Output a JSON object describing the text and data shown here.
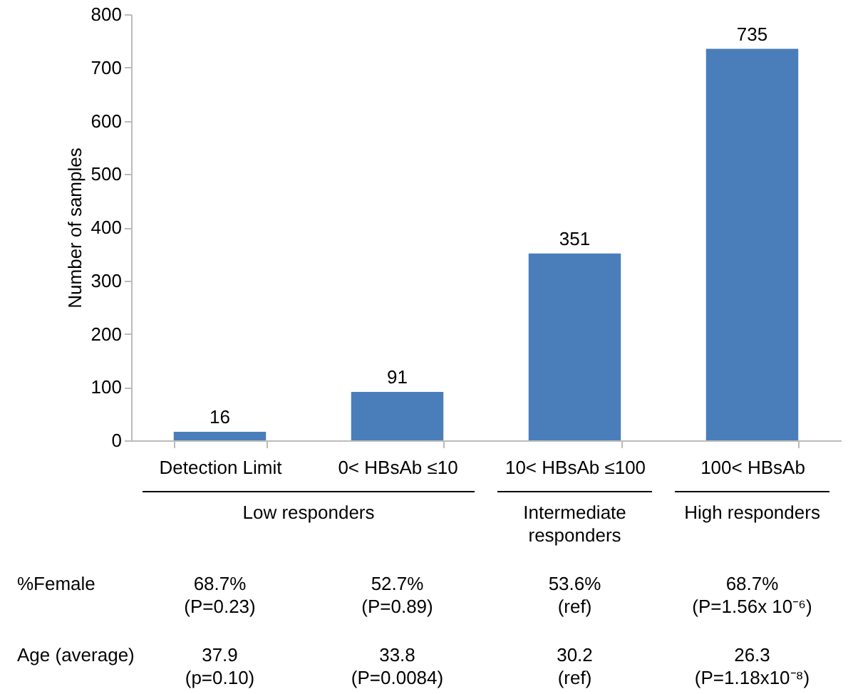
{
  "chart_data": {
    "type": "bar",
    "ylabel": "Number  of samples",
    "categories": [
      "Detection Limit",
      "0< HBsAb ≤10",
      "10< HBsAb ≤100",
      "100< HBsAb"
    ],
    "values": [
      16,
      91,
      351,
      735
    ],
    "color": "#4a7ebb",
    "ylim": [
      0,
      800
    ],
    "yticks": [
      0,
      100,
      200,
      300,
      400,
      500,
      600,
      700,
      800
    ],
    "grid": false,
    "data_labels": true,
    "annotations": [
      "Low responders",
      "Intermediate\nresponders",
      "High responders",
      "%Female",
      "68.7%\n(P=0.23)",
      "52.7%\n(P=0.89)",
      "53.6%\n(ref)",
      "68.7%\n(P=1.56x 10⁻⁶)",
      "Age  (average)",
      "37.9\n(p=0.10)",
      "33.8\n(P=0.0084)",
      "30.2\n(ref)",
      "26.3\n(P=1.18x10⁻⁸)"
    ]
  }
}
